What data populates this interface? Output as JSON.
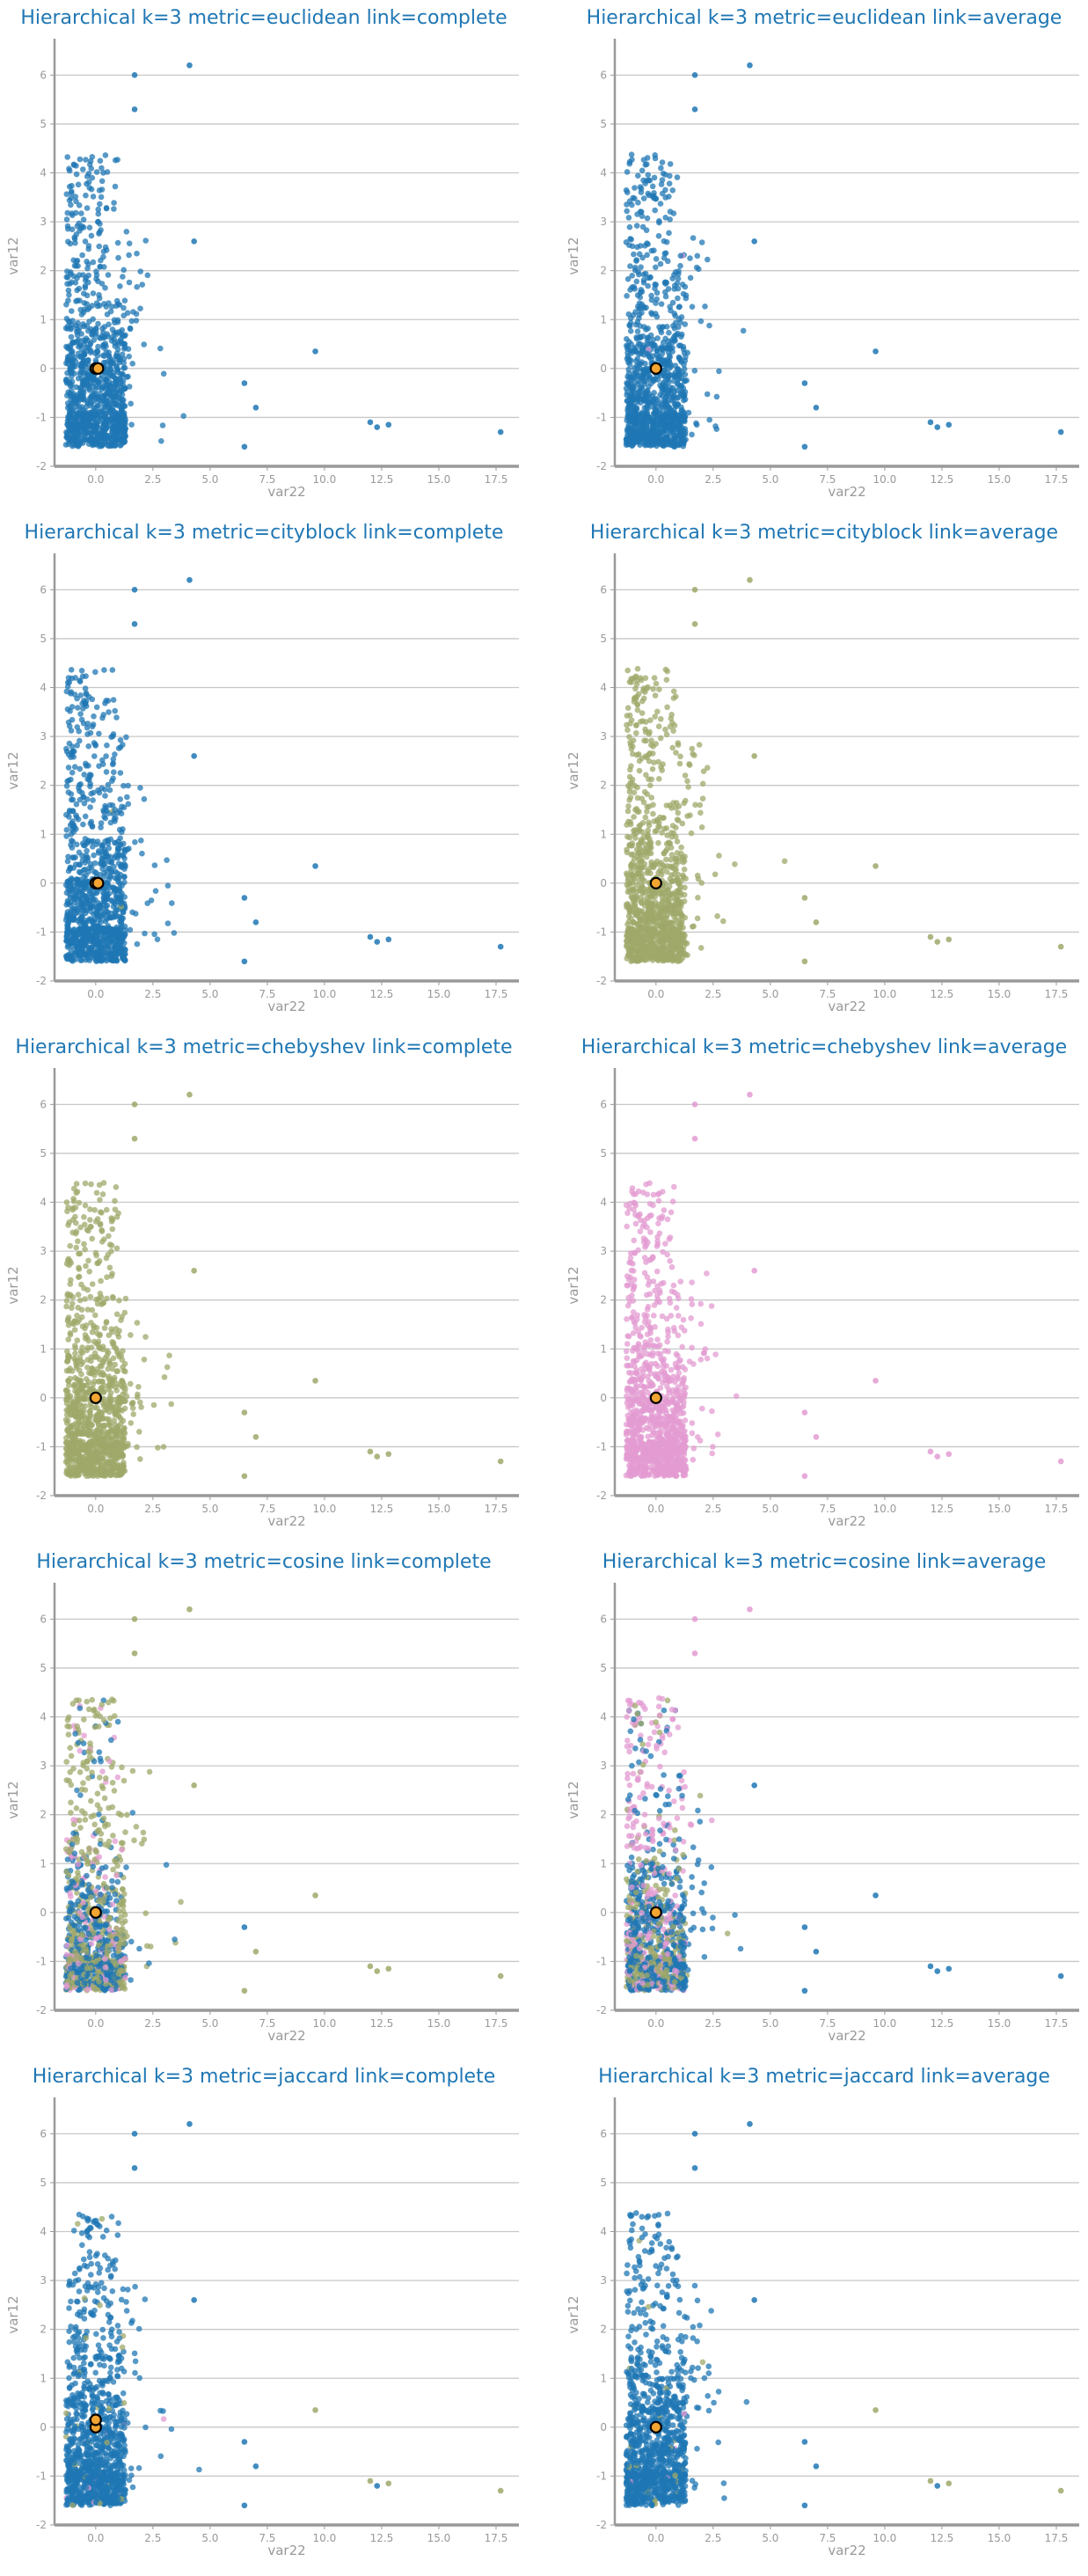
{
  "colors": {
    "cluster_0": "#1f77b4",
    "cluster_1": "#9fa86a",
    "cluster_2": "#e39bd2",
    "centroid_fill": "#f2a531",
    "centroid_edge": "#000000",
    "grid": "#c8c8c8",
    "axis": "#999999",
    "title": "#1f77b4"
  },
  "chart_data": [
    {
      "type": "scatter",
      "title": "Hierarchical k=3 metric=euclidean link=complete",
      "xlabel": "var22",
      "ylabel": "var12",
      "xlim": [
        -1.8,
        18.5
      ],
      "ylim": [
        -2,
        6.6
      ],
      "x_ticks": [
        "0.0",
        "2.5",
        "5.0",
        "7.5",
        "10.0",
        "12.5",
        "15.0",
        "17.5"
      ],
      "y_ticks": [
        "-2",
        "-1",
        "0",
        "1",
        "2",
        "3",
        "4",
        "5",
        "6"
      ],
      "grid": "horizontal",
      "cluster_mix": [
        0.998,
        0.001,
        0.001
      ],
      "centroids": [
        [
          0.0,
          0.0
        ],
        [
          0.1,
          0.0
        ]
      ],
      "outliers": [
        {
          "x": 1.7,
          "y": 6.0,
          "cluster": 0
        },
        {
          "x": 4.1,
          "y": 6.2,
          "cluster": 0
        },
        {
          "x": 1.7,
          "y": 5.3,
          "cluster": 0
        },
        {
          "x": 4.3,
          "y": 2.6,
          "cluster": 0
        },
        {
          "x": 9.6,
          "y": 0.35,
          "cluster": 0
        },
        {
          "x": 12.0,
          "y": -1.1,
          "cluster": 0
        },
        {
          "x": 12.3,
          "y": -1.2,
          "cluster": 0
        },
        {
          "x": 12.8,
          "y": -1.15,
          "cluster": 0
        },
        {
          "x": 17.7,
          "y": -1.3,
          "cluster": 0
        },
        {
          "x": 6.5,
          "y": -1.6,
          "cluster": 0
        },
        {
          "x": 7.0,
          "y": -0.8,
          "cluster": 0
        },
        {
          "x": 6.5,
          "y": -0.3,
          "cluster": 0
        }
      ]
    },
    {
      "type": "scatter",
      "title": "Hierarchical k=3 metric=euclidean link=average",
      "xlabel": "var22",
      "ylabel": "var12",
      "xlim": [
        -1.8,
        18.5
      ],
      "ylim": [
        -2,
        6.6
      ],
      "x_ticks": [
        "0.0",
        "2.5",
        "5.0",
        "7.5",
        "10.0",
        "12.5",
        "15.0",
        "17.5"
      ],
      "y_ticks": [
        "-2",
        "-1",
        "0",
        "1",
        "2",
        "3",
        "4",
        "5",
        "6"
      ],
      "grid": "horizontal",
      "cluster_mix": [
        0.999,
        0.0005,
        0.0005
      ],
      "centroids": [
        [
          0.0,
          0.0
        ]
      ],
      "outliers": [
        {
          "x": 1.7,
          "y": 6.0,
          "cluster": 0
        },
        {
          "x": 4.1,
          "y": 6.2,
          "cluster": 0
        },
        {
          "x": 1.7,
          "y": 5.3,
          "cluster": 0
        },
        {
          "x": 4.3,
          "y": 2.6,
          "cluster": 0
        },
        {
          "x": 9.6,
          "y": 0.35,
          "cluster": 0
        },
        {
          "x": 12.0,
          "y": -1.1,
          "cluster": 0
        },
        {
          "x": 12.3,
          "y": -1.2,
          "cluster": 0
        },
        {
          "x": 12.8,
          "y": -1.15,
          "cluster": 0
        },
        {
          "x": 17.7,
          "y": -1.3,
          "cluster": 0
        },
        {
          "x": 6.5,
          "y": -1.6,
          "cluster": 0
        },
        {
          "x": 7.0,
          "y": -0.8,
          "cluster": 0
        },
        {
          "x": 6.5,
          "y": -0.3,
          "cluster": 0
        }
      ]
    },
    {
      "type": "scatter",
      "title": "Hierarchical k=3 metric=cityblock link=complete",
      "xlabel": "var22",
      "ylabel": "var12",
      "xlim": [
        -1.8,
        18.5
      ],
      "ylim": [
        -2,
        6.6
      ],
      "x_ticks": [
        "0.0",
        "2.5",
        "5.0",
        "7.5",
        "10.0",
        "12.5",
        "15.0",
        "17.5"
      ],
      "y_ticks": [
        "-2",
        "-1",
        "0",
        "1",
        "2",
        "3",
        "4",
        "5",
        "6"
      ],
      "grid": "horizontal",
      "cluster_mix": [
        0.995,
        0.003,
        0.002
      ],
      "centroids": [
        [
          0.0,
          0.0
        ],
        [
          0.1,
          0.0
        ]
      ],
      "outliers": [
        {
          "x": 1.7,
          "y": 6.0,
          "cluster": 0
        },
        {
          "x": 4.1,
          "y": 6.2,
          "cluster": 0
        },
        {
          "x": 1.7,
          "y": 5.3,
          "cluster": 0
        },
        {
          "x": 4.3,
          "y": 2.6,
          "cluster": 0
        },
        {
          "x": 9.6,
          "y": 0.35,
          "cluster": 0
        },
        {
          "x": 12.0,
          "y": -1.1,
          "cluster": 0
        },
        {
          "x": 12.3,
          "y": -1.2,
          "cluster": 0
        },
        {
          "x": 12.8,
          "y": -1.15,
          "cluster": 0
        },
        {
          "x": 17.7,
          "y": -1.3,
          "cluster": 0
        },
        {
          "x": 6.5,
          "y": -1.6,
          "cluster": 0
        },
        {
          "x": 7.0,
          "y": -0.8,
          "cluster": 0
        },
        {
          "x": 6.5,
          "y": -0.3,
          "cluster": 0
        }
      ]
    },
    {
      "type": "scatter",
      "title": "Hierarchical k=3 metric=cityblock link=average",
      "xlabel": "var22",
      "ylabel": "var12",
      "xlim": [
        -1.8,
        18.5
      ],
      "ylim": [
        -2,
        6.6
      ],
      "x_ticks": [
        "0.0",
        "2.5",
        "5.0",
        "7.5",
        "10.0",
        "12.5",
        "15.0",
        "17.5"
      ],
      "y_ticks": [
        "-2",
        "-1",
        "0",
        "1",
        "2",
        "3",
        "4",
        "5",
        "6"
      ],
      "grid": "horizontal",
      "cluster_mix": [
        0.0,
        1.0,
        0.0
      ],
      "centroids": [
        [
          0.0,
          0.0
        ]
      ],
      "outliers": [
        {
          "x": 1.7,
          "y": 6.0,
          "cluster": 1
        },
        {
          "x": 4.1,
          "y": 6.2,
          "cluster": 1
        },
        {
          "x": 1.7,
          "y": 5.3,
          "cluster": 1
        },
        {
          "x": 4.3,
          "y": 2.6,
          "cluster": 1
        },
        {
          "x": 9.6,
          "y": 0.35,
          "cluster": 1
        },
        {
          "x": 12.0,
          "y": -1.1,
          "cluster": 1
        },
        {
          "x": 12.3,
          "y": -1.2,
          "cluster": 1
        },
        {
          "x": 12.8,
          "y": -1.15,
          "cluster": 1
        },
        {
          "x": 17.7,
          "y": -1.3,
          "cluster": 1
        },
        {
          "x": 6.5,
          "y": -1.6,
          "cluster": 1
        },
        {
          "x": 7.0,
          "y": -0.8,
          "cluster": 1
        },
        {
          "x": 6.5,
          "y": -0.3,
          "cluster": 1
        }
      ]
    },
    {
      "type": "scatter",
      "title": "Hierarchical k=3 metric=chebyshev link=complete",
      "xlabel": "var22",
      "ylabel": "var12",
      "xlim": [
        -1.8,
        18.5
      ],
      "ylim": [
        -2,
        6.6
      ],
      "x_ticks": [
        "0.0",
        "2.5",
        "5.0",
        "7.5",
        "10.0",
        "12.5",
        "15.0",
        "17.5"
      ],
      "y_ticks": [
        "-2",
        "-1",
        "0",
        "1",
        "2",
        "3",
        "4",
        "5",
        "6"
      ],
      "grid": "horizontal",
      "cluster_mix": [
        0.0,
        1.0,
        0.0
      ],
      "centroids": [
        [
          0.0,
          0.0
        ]
      ],
      "outliers": [
        {
          "x": 1.7,
          "y": 6.0,
          "cluster": 1
        },
        {
          "x": 4.1,
          "y": 6.2,
          "cluster": 1
        },
        {
          "x": 1.7,
          "y": 5.3,
          "cluster": 1
        },
        {
          "x": 4.3,
          "y": 2.6,
          "cluster": 1
        },
        {
          "x": 9.6,
          "y": 0.35,
          "cluster": 1
        },
        {
          "x": 12.0,
          "y": -1.1,
          "cluster": 1
        },
        {
          "x": 12.3,
          "y": -1.2,
          "cluster": 1
        },
        {
          "x": 12.8,
          "y": -1.15,
          "cluster": 1
        },
        {
          "x": 17.7,
          "y": -1.3,
          "cluster": 1
        },
        {
          "x": 6.5,
          "y": -1.6,
          "cluster": 1
        },
        {
          "x": 7.0,
          "y": -0.8,
          "cluster": 1
        },
        {
          "x": 6.5,
          "y": -0.3,
          "cluster": 1
        }
      ]
    },
    {
      "type": "scatter",
      "title": "Hierarchical k=3 metric=chebyshev link=average",
      "xlabel": "var22",
      "ylabel": "var12",
      "xlim": [
        -1.8,
        18.5
      ],
      "ylim": [
        -2,
        6.6
      ],
      "x_ticks": [
        "0.0",
        "2.5",
        "5.0",
        "7.5",
        "10.0",
        "12.5",
        "15.0",
        "17.5"
      ],
      "y_ticks": [
        "-2",
        "-1",
        "0",
        "1",
        "2",
        "3",
        "4",
        "5",
        "6"
      ],
      "grid": "horizontal",
      "cluster_mix": [
        0.0,
        0.0,
        1.0
      ],
      "centroids": [
        [
          0.0,
          0.0
        ]
      ],
      "outliers": [
        {
          "x": 1.7,
          "y": 6.0,
          "cluster": 2
        },
        {
          "x": 4.1,
          "y": 6.2,
          "cluster": 2
        },
        {
          "x": 1.7,
          "y": 5.3,
          "cluster": 2
        },
        {
          "x": 4.3,
          "y": 2.6,
          "cluster": 2
        },
        {
          "x": 9.6,
          "y": 0.35,
          "cluster": 2
        },
        {
          "x": 12.0,
          "y": -1.1,
          "cluster": 2
        },
        {
          "x": 12.3,
          "y": -1.2,
          "cluster": 2
        },
        {
          "x": 12.8,
          "y": -1.15,
          "cluster": 2
        },
        {
          "x": 17.7,
          "y": -1.3,
          "cluster": 2
        },
        {
          "x": 6.5,
          "y": -1.6,
          "cluster": 2
        },
        {
          "x": 7.0,
          "y": -0.8,
          "cluster": 2
        },
        {
          "x": 6.5,
          "y": -0.3,
          "cluster": 2
        }
      ]
    },
    {
      "type": "scatter",
      "title": "Hierarchical k=3 metric=cosine link=complete",
      "xlabel": "var22",
      "ylabel": "var12",
      "xlim": [
        -1.8,
        18.5
      ],
      "ylim": [
        -2,
        6.6
      ],
      "x_ticks": [
        "0.0",
        "2.5",
        "5.0",
        "7.5",
        "10.0",
        "12.5",
        "15.0",
        "17.5"
      ],
      "y_ticks": [
        "-2",
        "-1",
        "0",
        "1",
        "2",
        "3",
        "4",
        "5",
        "6"
      ],
      "grid": "horizontal",
      "cluster_mix": [
        0.45,
        0.4,
        0.15
      ],
      "centroids": [
        [
          0.0,
          0.0
        ]
      ],
      "outliers": [
        {
          "x": 1.7,
          "y": 6.0,
          "cluster": 1
        },
        {
          "x": 4.1,
          "y": 6.2,
          "cluster": 1
        },
        {
          "x": 1.7,
          "y": 5.3,
          "cluster": 1
        },
        {
          "x": 4.3,
          "y": 2.6,
          "cluster": 1
        },
        {
          "x": 9.6,
          "y": 0.35,
          "cluster": 1
        },
        {
          "x": 12.0,
          "y": -1.1,
          "cluster": 1
        },
        {
          "x": 12.3,
          "y": -1.2,
          "cluster": 1
        },
        {
          "x": 12.8,
          "y": -1.15,
          "cluster": 1
        },
        {
          "x": 17.7,
          "y": -1.3,
          "cluster": 1
        },
        {
          "x": 6.5,
          "y": -1.6,
          "cluster": 1
        },
        {
          "x": 7.0,
          "y": -0.8,
          "cluster": 1
        },
        {
          "x": 6.5,
          "y": -0.3,
          "cluster": 0
        }
      ]
    },
    {
      "type": "scatter",
      "title": "Hierarchical k=3 metric=cosine link=average",
      "xlabel": "var22",
      "ylabel": "var12",
      "xlim": [
        -1.8,
        18.5
      ],
      "ylim": [
        -2,
        6.6
      ],
      "x_ticks": [
        "0.0",
        "2.5",
        "5.0",
        "7.5",
        "10.0",
        "12.5",
        "15.0",
        "17.5"
      ],
      "y_ticks": [
        "-2",
        "-1",
        "0",
        "1",
        "2",
        "3",
        "4",
        "5",
        "6"
      ],
      "grid": "horizontal",
      "cluster_mix": [
        0.5,
        0.3,
        0.2
      ],
      "centroids": [
        [
          0.0,
          0.0
        ]
      ],
      "outliers": [
        {
          "x": 1.7,
          "y": 6.0,
          "cluster": 2
        },
        {
          "x": 4.1,
          "y": 6.2,
          "cluster": 2
        },
        {
          "x": 1.7,
          "y": 5.3,
          "cluster": 2
        },
        {
          "x": 4.3,
          "y": 2.6,
          "cluster": 0
        },
        {
          "x": 9.6,
          "y": 0.35,
          "cluster": 0
        },
        {
          "x": 12.0,
          "y": -1.1,
          "cluster": 0
        },
        {
          "x": 12.3,
          "y": -1.2,
          "cluster": 0
        },
        {
          "x": 12.8,
          "y": -1.15,
          "cluster": 0
        },
        {
          "x": 17.7,
          "y": -1.3,
          "cluster": 0
        },
        {
          "x": 6.5,
          "y": -1.6,
          "cluster": 0
        },
        {
          "x": 7.0,
          "y": -0.8,
          "cluster": 0
        },
        {
          "x": 6.5,
          "y": -0.3,
          "cluster": 0
        }
      ]
    },
    {
      "type": "scatter",
      "title": "Hierarchical k=3 metric=jaccard link=complete",
      "xlabel": "var22",
      "ylabel": "var12",
      "xlim": [
        -1.8,
        18.5
      ],
      "ylim": [
        -2,
        6.6
      ],
      "x_ticks": [
        "0.0",
        "2.5",
        "5.0",
        "7.5",
        "10.0",
        "12.5",
        "15.0",
        "17.5"
      ],
      "y_ticks": [
        "-2",
        "-1",
        "0",
        "1",
        "2",
        "3",
        "4",
        "5",
        "6"
      ],
      "grid": "horizontal",
      "cluster_mix": [
        0.96,
        0.03,
        0.01
      ],
      "centroids": [
        [
          0.0,
          0.0
        ],
        [
          0.0,
          0.15
        ]
      ],
      "outliers": [
        {
          "x": 1.7,
          "y": 6.0,
          "cluster": 0
        },
        {
          "x": 4.1,
          "y": 6.2,
          "cluster": 0
        },
        {
          "x": 1.7,
          "y": 5.3,
          "cluster": 0
        },
        {
          "x": 4.3,
          "y": 2.6,
          "cluster": 0
        },
        {
          "x": 9.6,
          "y": 0.35,
          "cluster": 1
        },
        {
          "x": 12.0,
          "y": -1.1,
          "cluster": 1
        },
        {
          "x": 12.3,
          "y": -1.2,
          "cluster": 0
        },
        {
          "x": 12.8,
          "y": -1.15,
          "cluster": 1
        },
        {
          "x": 17.7,
          "y": -1.3,
          "cluster": 1
        },
        {
          "x": 6.5,
          "y": -1.6,
          "cluster": 0
        },
        {
          "x": 7.0,
          "y": -0.8,
          "cluster": 0
        },
        {
          "x": 6.5,
          "y": -0.3,
          "cluster": 0
        }
      ]
    },
    {
      "type": "scatter",
      "title": "Hierarchical k=3 metric=jaccard link=average",
      "xlabel": "var22",
      "ylabel": "var12",
      "xlim": [
        -1.8,
        18.5
      ],
      "ylim": [
        -2,
        6.6
      ],
      "x_ticks": [
        "0.0",
        "2.5",
        "5.0",
        "7.5",
        "10.0",
        "12.5",
        "15.0",
        "17.5"
      ],
      "y_ticks": [
        "-2",
        "-1",
        "0",
        "1",
        "2",
        "3",
        "4",
        "5",
        "6"
      ],
      "grid": "horizontal",
      "cluster_mix": [
        0.97,
        0.025,
        0.005
      ],
      "centroids": [
        [
          0.0,
          0.0
        ]
      ],
      "outliers": [
        {
          "x": 1.7,
          "y": 6.0,
          "cluster": 0
        },
        {
          "x": 4.1,
          "y": 6.2,
          "cluster": 0
        },
        {
          "x": 1.7,
          "y": 5.3,
          "cluster": 0
        },
        {
          "x": 4.3,
          "y": 2.6,
          "cluster": 0
        },
        {
          "x": 9.6,
          "y": 0.35,
          "cluster": 1
        },
        {
          "x": 12.0,
          "y": -1.1,
          "cluster": 1
        },
        {
          "x": 12.3,
          "y": -1.2,
          "cluster": 0
        },
        {
          "x": 12.8,
          "y": -1.15,
          "cluster": 1
        },
        {
          "x": 17.7,
          "y": -1.3,
          "cluster": 1
        },
        {
          "x": 6.5,
          "y": -1.6,
          "cluster": 0
        },
        {
          "x": 7.0,
          "y": -0.8,
          "cluster": 0
        },
        {
          "x": 6.5,
          "y": -0.3,
          "cluster": 0
        }
      ]
    }
  ]
}
